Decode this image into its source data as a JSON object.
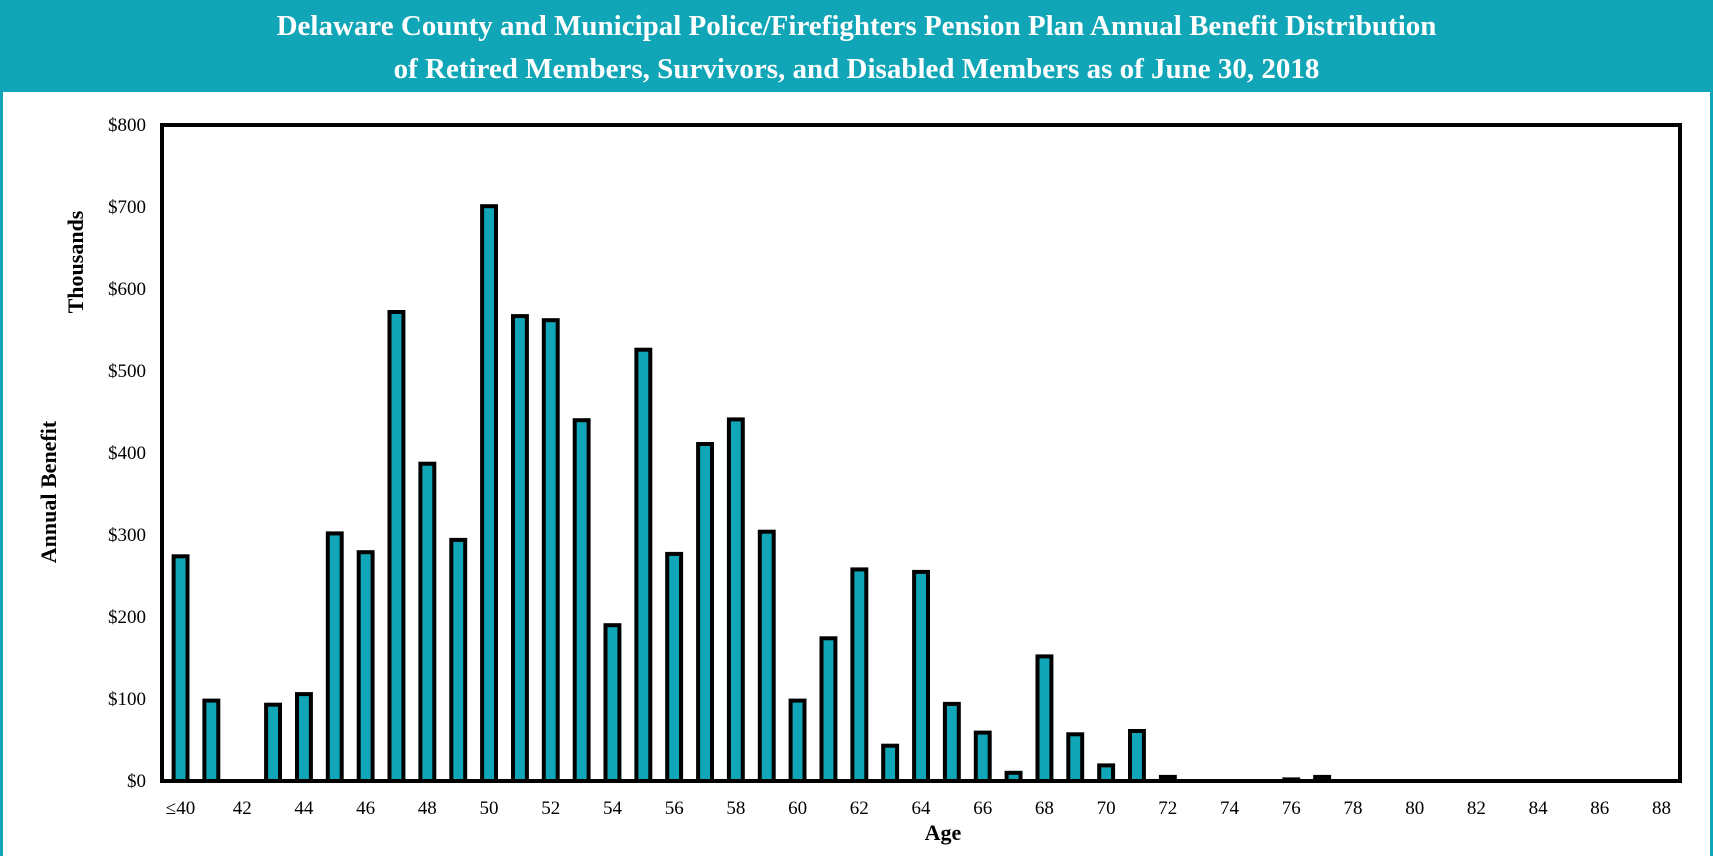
{
  "chart_data": {
    "type": "bar",
    "title": "Delaware County and Municipal Police/Firefighters Pension Plan Annual Benefit Distribution",
    "subtitle": "of Retired Members, Survivors, and Disabled Members as of June 30, 2018",
    "xlabel": "Age",
    "ylabel": "Annual Benefit",
    "ylabel_unit": "Thousands",
    "ylim": [
      0,
      800
    ],
    "yticks": [
      "$0",
      "$100",
      "$200",
      "$300",
      "$400",
      "$500",
      "$600",
      "$700",
      "$800"
    ],
    "ytick_values": [
      0,
      100,
      200,
      300,
      400,
      500,
      600,
      700,
      800
    ],
    "xtick_labels": [
      "≤40",
      "42",
      "44",
      "46",
      "48",
      "50",
      "52",
      "54",
      "56",
      "58",
      "60",
      "62",
      "64",
      "66",
      "68",
      "70",
      "72",
      "74",
      "76",
      "78",
      "80",
      "82",
      "84",
      "86",
      "88"
    ],
    "categories": [
      "≤40",
      "41",
      "42",
      "43",
      "44",
      "45",
      "46",
      "47",
      "48",
      "49",
      "50",
      "51",
      "52",
      "53",
      "54",
      "55",
      "56",
      "57",
      "58",
      "59",
      "60",
      "61",
      "62",
      "63",
      "64",
      "65",
      "66",
      "67",
      "68",
      "69",
      "70",
      "71",
      "72",
      "73",
      "74",
      "75",
      "76",
      "77",
      "78",
      "79",
      "80",
      "81",
      "82",
      "83",
      "84",
      "85",
      "86",
      "87",
      "88"
    ],
    "values": [
      274,
      98,
      0,
      93,
      106,
      302,
      279,
      572,
      387,
      294,
      701,
      567,
      562,
      440,
      190,
      526,
      277,
      411,
      441,
      304,
      98,
      174,
      258,
      43,
      255,
      94,
      59,
      10,
      152,
      57,
      19,
      61,
      5,
      0,
      0,
      0,
      2,
      5,
      0,
      0,
      0,
      0,
      0,
      0,
      0,
      0,
      0,
      0,
      0
    ],
    "bar_color": "#10a6b7",
    "bar_outline": "#000000",
    "grid": false,
    "legend": "none"
  },
  "colors": {
    "accent": "#10a6b7"
  }
}
